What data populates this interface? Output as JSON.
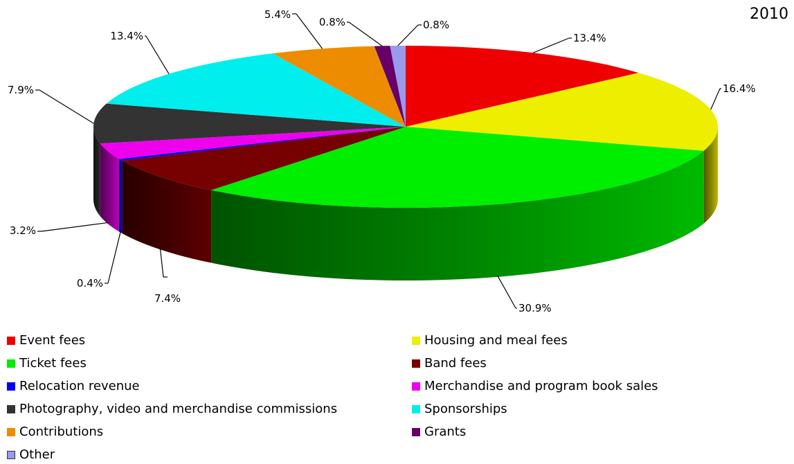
{
  "chart_data": {
    "type": "pie",
    "title": "2010",
    "style": "3d",
    "start_angle_deg": 90,
    "direction": "clockwise",
    "slices": [
      {
        "label": "Event fees",
        "value": 13.4,
        "display": "13.4%",
        "color": "#ee0000"
      },
      {
        "label": "Housing and meal fees",
        "value": 16.4,
        "display": "16.4%",
        "color": "#eeee00"
      },
      {
        "label": "Ticket fees",
        "value": 30.9,
        "display": "30.9%",
        "color": "#00ee00"
      },
      {
        "label": "Band fees",
        "value": 7.4,
        "display": "7.4%",
        "color": "#770000"
      },
      {
        "label": "Relocation revenue",
        "value": 0.4,
        "display": "0.4%",
        "color": "#0000ee"
      },
      {
        "label": "Merchandise and program book sales",
        "value": 3.2,
        "display": "3.2%",
        "color": "#ee00ee"
      },
      {
        "label": "Photography, video and merchandise commissions",
        "value": 7.9,
        "display": "7.9%",
        "color": "#333333"
      },
      {
        "label": "Sponsorships",
        "value": 13.4,
        "display": "13.4%",
        "color": "#00eeee"
      },
      {
        "label": "Contributions",
        "value": 5.4,
        "display": "5.4%",
        "color": "#ee8c00"
      },
      {
        "label": "Grants",
        "value": 0.8,
        "display": "0.8%",
        "color": "#660066"
      },
      {
        "label": "Other",
        "value": 0.8,
        "display": "0.8%",
        "color": "#9999ee"
      }
    ],
    "legend": {
      "position": "bottom",
      "columns": [
        [
          "Event fees",
          "Ticket fees",
          "Relocation revenue",
          "Photography, video and merchandise commissions",
          "Contributions",
          "Other"
        ],
        [
          "Housing and meal fees",
          "Band fees",
          "Merchandise and program book sales",
          "Sponsorships",
          "Grants"
        ]
      ]
    }
  }
}
